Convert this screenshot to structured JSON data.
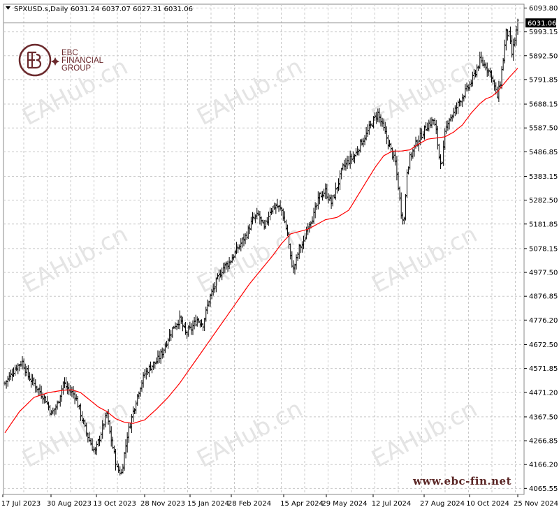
{
  "chart_data": {
    "type": "ohlc",
    "symbol_timeframe": "SPXUSD.s,Daily",
    "ohlc_header": "6031.24 6037.07 6027.31 6031.06",
    "current_price_label": "6031.06",
    "current_price": 6031.06,
    "ylim": [
      4040,
      6110
    ],
    "y_ticks": [
      6093.8,
      5993.15,
      5892.5,
      5791.85,
      5688.15,
      5587.5,
      5486.85,
      5383.15,
      5282.5,
      5181.85,
      5078.15,
      4977.5,
      4876.85,
      4776.2,
      4672.5,
      4571.85,
      4471.2,
      4367.5,
      4266.85,
      4166.2,
      4065.55
    ],
    "y_tick_labels": [
      "6093.80",
      "5993.15",
      "5892.50",
      "5791.85",
      "5688.15",
      "5587.50",
      "5486.85",
      "5383.15",
      "5282.50",
      "5181.85",
      "5078.15",
      "4977.50",
      "4876.85",
      "4776.20",
      "4672.50",
      "4571.85",
      "4471.20",
      "4367.50",
      "4266.85",
      "4166.20",
      "4065.55"
    ],
    "x_tick_labels": [
      "17 Jul 2023",
      "30 Aug 2023",
      "13 Oct 2023",
      "28 Nov 2023",
      "15 Jan 2024",
      "28 Feb 2024",
      "15 Apr 2024",
      "29 May 2024",
      "12 Jul 2024",
      "27 Aug 2024",
      "10 Oct 2024",
      "25 Nov 2024"
    ],
    "grid": true,
    "bar_count": 352,
    "price_path": [
      [
        0,
        4510
      ],
      [
        8,
        4580
      ],
      [
        12,
        4600
      ],
      [
        16,
        4540
      ],
      [
        22,
        4490
      ],
      [
        28,
        4440
      ],
      [
        32,
        4380
      ],
      [
        36,
        4420
      ],
      [
        40,
        4510
      ],
      [
        44,
        4480
      ],
      [
        48,
        4460
      ],
      [
        52,
        4380
      ],
      [
        56,
        4300
      ],
      [
        60,
        4240
      ],
      [
        62,
        4220
      ],
      [
        66,
        4300
      ],
      [
        70,
        4380
      ],
      [
        72,
        4300
      ],
      [
        74,
        4240
      ],
      [
        77,
        4150
      ],
      [
        80,
        4130
      ],
      [
        84,
        4290
      ],
      [
        88,
        4390
      ],
      [
        92,
        4480
      ],
      [
        96,
        4550
      ],
      [
        100,
        4580
      ],
      [
        104,
        4600
      ],
      [
        108,
        4640
      ],
      [
        112,
        4700
      ],
      [
        116,
        4750
      ],
      [
        120,
        4780
      ],
      [
        124,
        4720
      ],
      [
        128,
        4740
      ],
      [
        132,
        4780
      ],
      [
        136,
        4760
      ],
      [
        140,
        4860
      ],
      [
        146,
        4950
      ],
      [
        150,
        5000
      ],
      [
        154,
        5020
      ],
      [
        158,
        5060
      ],
      [
        162,
        5100
      ],
      [
        166,
        5140
      ],
      [
        170,
        5200
      ],
      [
        174,
        5220
      ],
      [
        178,
        5160
      ],
      [
        182,
        5240
      ],
      [
        186,
        5260
      ],
      [
        190,
        5240
      ],
      [
        194,
        5140
      ],
      [
        196,
        5040
      ],
      [
        198,
        4990
      ],
      [
        200,
        5030
      ],
      [
        202,
        5080
      ],
      [
        205,
        5100
      ],
      [
        208,
        5180
      ],
      [
        212,
        5220
      ],
      [
        216,
        5300
      ],
      [
        220,
        5320
      ],
      [
        224,
        5270
      ],
      [
        228,
        5340
      ],
      [
        232,
        5420
      ],
      [
        236,
        5450
      ],
      [
        240,
        5470
      ],
      [
        244,
        5520
      ],
      [
        248,
        5560
      ],
      [
        252,
        5610
      ],
      [
        256,
        5650
      ],
      [
        260,
        5580
      ],
      [
        264,
        5510
      ],
      [
        268,
        5440
      ],
      [
        270,
        5340
      ],
      [
        272,
        5230
      ],
      [
        274,
        5200
      ],
      [
        276,
        5410
      ],
      [
        278,
        5460
      ],
      [
        282,
        5520
      ],
      [
        286,
        5560
      ],
      [
        290,
        5600
      ],
      [
        294,
        5620
      ],
      [
        296,
        5570
      ],
      [
        298,
        5470
      ],
      [
        300,
        5430
      ],
      [
        302,
        5560
      ],
      [
        304,
        5620
      ],
      [
        308,
        5650
      ],
      [
        312,
        5700
      ],
      [
        316,
        5740
      ],
      [
        320,
        5780
      ],
      [
        324,
        5840
      ],
      [
        326,
        5870
      ],
      [
        330,
        5850
      ],
      [
        334,
        5810
      ],
      [
        336,
        5760
      ],
      [
        338,
        5720
      ],
      [
        340,
        5780
      ],
      [
        342,
        5880
      ],
      [
        344,
        5990
      ],
      [
        346,
        5980
      ],
      [
        348,
        5900
      ],
      [
        350,
        5960
      ],
      [
        352,
        6031
      ]
    ],
    "moving_average": {
      "color": "#ff0000",
      "points": [
        [
          0,
          4300
        ],
        [
          10,
          4390
        ],
        [
          20,
          4450
        ],
        [
          30,
          4470
        ],
        [
          40,
          4480
        ],
        [
          46,
          4482
        ],
        [
          52,
          4470
        ],
        [
          58,
          4440
        ],
        [
          64,
          4410
        ],
        [
          70,
          4390
        ],
        [
          76,
          4360
        ],
        [
          82,
          4345
        ],
        [
          88,
          4340
        ],
        [
          96,
          4355
        ],
        [
          104,
          4400
        ],
        [
          112,
          4450
        ],
        [
          120,
          4510
        ],
        [
          128,
          4580
        ],
        [
          136,
          4650
        ],
        [
          144,
          4720
        ],
        [
          152,
          4790
        ],
        [
          160,
          4860
        ],
        [
          168,
          4930
        ],
        [
          176,
          4990
        ],
        [
          184,
          5050
        ],
        [
          190,
          5100
        ],
        [
          196,
          5140
        ],
        [
          202,
          5150
        ],
        [
          208,
          5160
        ],
        [
          214,
          5180
        ],
        [
          220,
          5200
        ],
        [
          228,
          5210
        ],
        [
          236,
          5240
        ],
        [
          242,
          5300
        ],
        [
          248,
          5360
        ],
        [
          254,
          5420
        ],
        [
          260,
          5470
        ],
        [
          266,
          5490
        ],
        [
          272,
          5490
        ],
        [
          278,
          5495
        ],
        [
          284,
          5520
        ],
        [
          290,
          5540
        ],
        [
          296,
          5545
        ],
        [
          302,
          5550
        ],
        [
          308,
          5570
        ],
        [
          314,
          5600
        ],
        [
          320,
          5650
        ],
        [
          326,
          5690
        ],
        [
          330,
          5710
        ],
        [
          334,
          5720
        ],
        [
          338,
          5740
        ],
        [
          342,
          5770
        ],
        [
          346,
          5800
        ],
        [
          352,
          5840
        ]
      ]
    }
  },
  "logo": {
    "line1": "EBC",
    "line2": "FINANCIAL",
    "line3": "GROUP",
    "color": "#6b2a2d"
  },
  "watermark": {
    "text": "EAHub.cn",
    "color": "#e4e4e4"
  },
  "website": "www.ebc-fin.net",
  "colors": {
    "bars": "#000000",
    "ma": "#ff0000",
    "grid": "#c8c8c8",
    "price_box": "#000000"
  }
}
